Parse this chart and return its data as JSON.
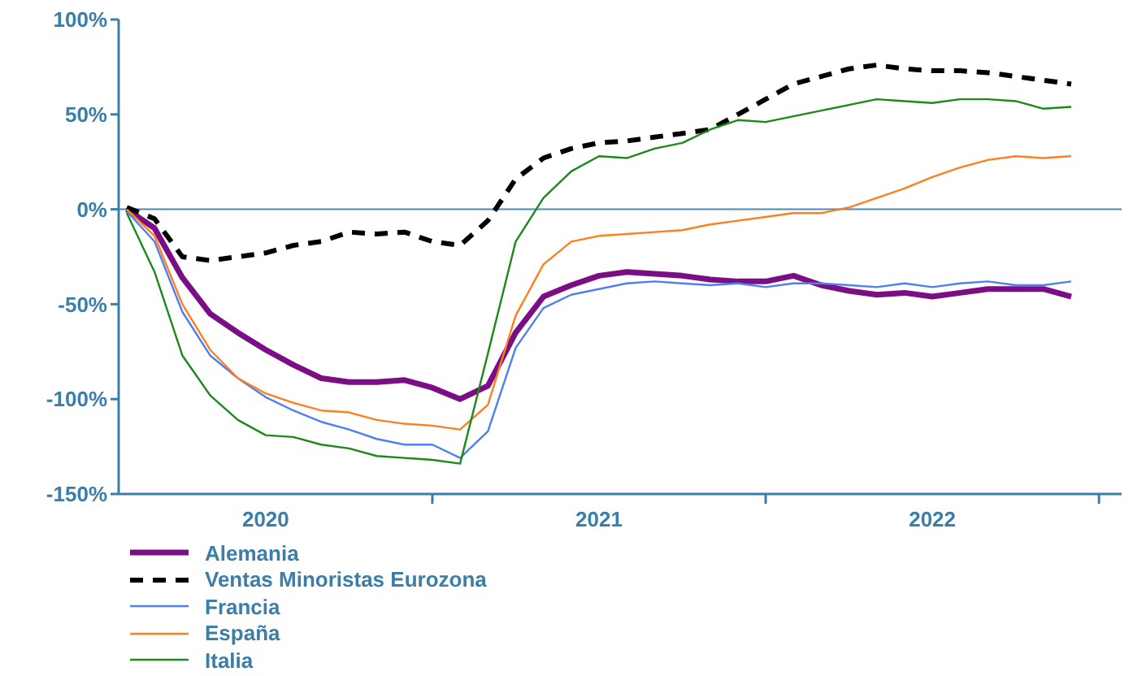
{
  "chart_data": {
    "type": "line",
    "categories": [
      null,
      null,
      null,
      null,
      null,
      "2020",
      null,
      null,
      null,
      null,
      null,
      null,
      null,
      null,
      null,
      null,
      null,
      "2021",
      null,
      null,
      null,
      null,
      null,
      null,
      null,
      null,
      null,
      null,
      null,
      "2022",
      null,
      null,
      null,
      null,
      null
    ],
    "series": [
      {
        "name": "Alemania",
        "color": "#7b0e84",
        "values": [
          0,
          -10,
          -36,
          -55,
          -65,
          -74,
          -82,
          -89,
          -91,
          -91,
          -90,
          -94,
          -100,
          -93,
          -65,
          -46,
          -40,
          -35,
          -33,
          -34,
          -35,
          -37,
          -38,
          -38,
          -35,
          -40,
          -43,
          -45,
          -44,
          -46,
          -44,
          -42,
          -42,
          -42,
          -46
        ]
      },
      {
        "name": "Ventas Minoristas Eurozona",
        "color": "#000000",
        "line_style": "dashed",
        "values": [
          1,
          -5,
          -25,
          -27,
          -25,
          -23,
          -19,
          -17,
          -12,
          -13,
          -12,
          -17,
          -19,
          -6,
          16,
          27,
          32,
          35,
          36,
          38,
          40,
          42,
          50,
          58,
          66,
          70,
          74,
          76,
          74,
          73,
          73,
          72,
          70,
          68,
          66
        ]
      },
      {
        "name": "Francia",
        "color": "#4f7ff0",
        "values": [
          -1,
          -17,
          -54,
          -77,
          -89,
          -99,
          -106,
          -112,
          -116,
          -121,
          -124,
          -124,
          -131,
          -117,
          -73,
          -52,
          -45,
          -42,
          -39,
          -38,
          -39,
          -40,
          -39,
          -41,
          -39,
          -39,
          -40,
          -41,
          -39,
          -41,
          -39,
          -38,
          -40,
          -40,
          -38
        ]
      },
      {
        "name": "España",
        "color": "#ff7f1e",
        "values": [
          0,
          -14,
          -50,
          -74,
          -89,
          -97,
          -102,
          -106,
          -107,
          -111,
          -113,
          -114,
          -116,
          -103,
          -56,
          -29,
          -17,
          -14,
          -13,
          -12,
          -11,
          -8,
          -6,
          -4,
          -2,
          -2,
          1,
          6,
          11,
          17,
          22,
          26,
          28,
          27,
          28
        ]
      },
      {
        "name": "Italia",
        "color": "#1a8a1a",
        "values": [
          -2,
          -33,
          -77,
          -98,
          -111,
          -119,
          -120,
          -124,
          -126,
          -130,
          -131,
          -132,
          -134,
          -76,
          -17,
          6,
          20,
          28,
          27,
          32,
          35,
          42,
          47,
          46,
          49,
          52,
          55,
          58,
          57,
          56,
          58,
          58,
          57,
          53,
          54
        ]
      }
    ],
    "ylim": [
      -150,
      100
    ],
    "yticks": [
      {
        "value": -150,
        "label": "-150%"
      },
      {
        "value": -100,
        "label": "-100%"
      },
      {
        "value": -50,
        "label": "-50%"
      },
      {
        "value": 0,
        "label": "0%"
      },
      {
        "value": 50,
        "label": "50%"
      },
      {
        "value": 100,
        "label": "100%"
      }
    ],
    "ref_lines": [
      {
        "axis": "y",
        "value": 0,
        "color": "#4a8ab5"
      }
    ],
    "grid": false,
    "legend": "bottom left",
    "marker": "none",
    "line_style": "solid"
  }
}
